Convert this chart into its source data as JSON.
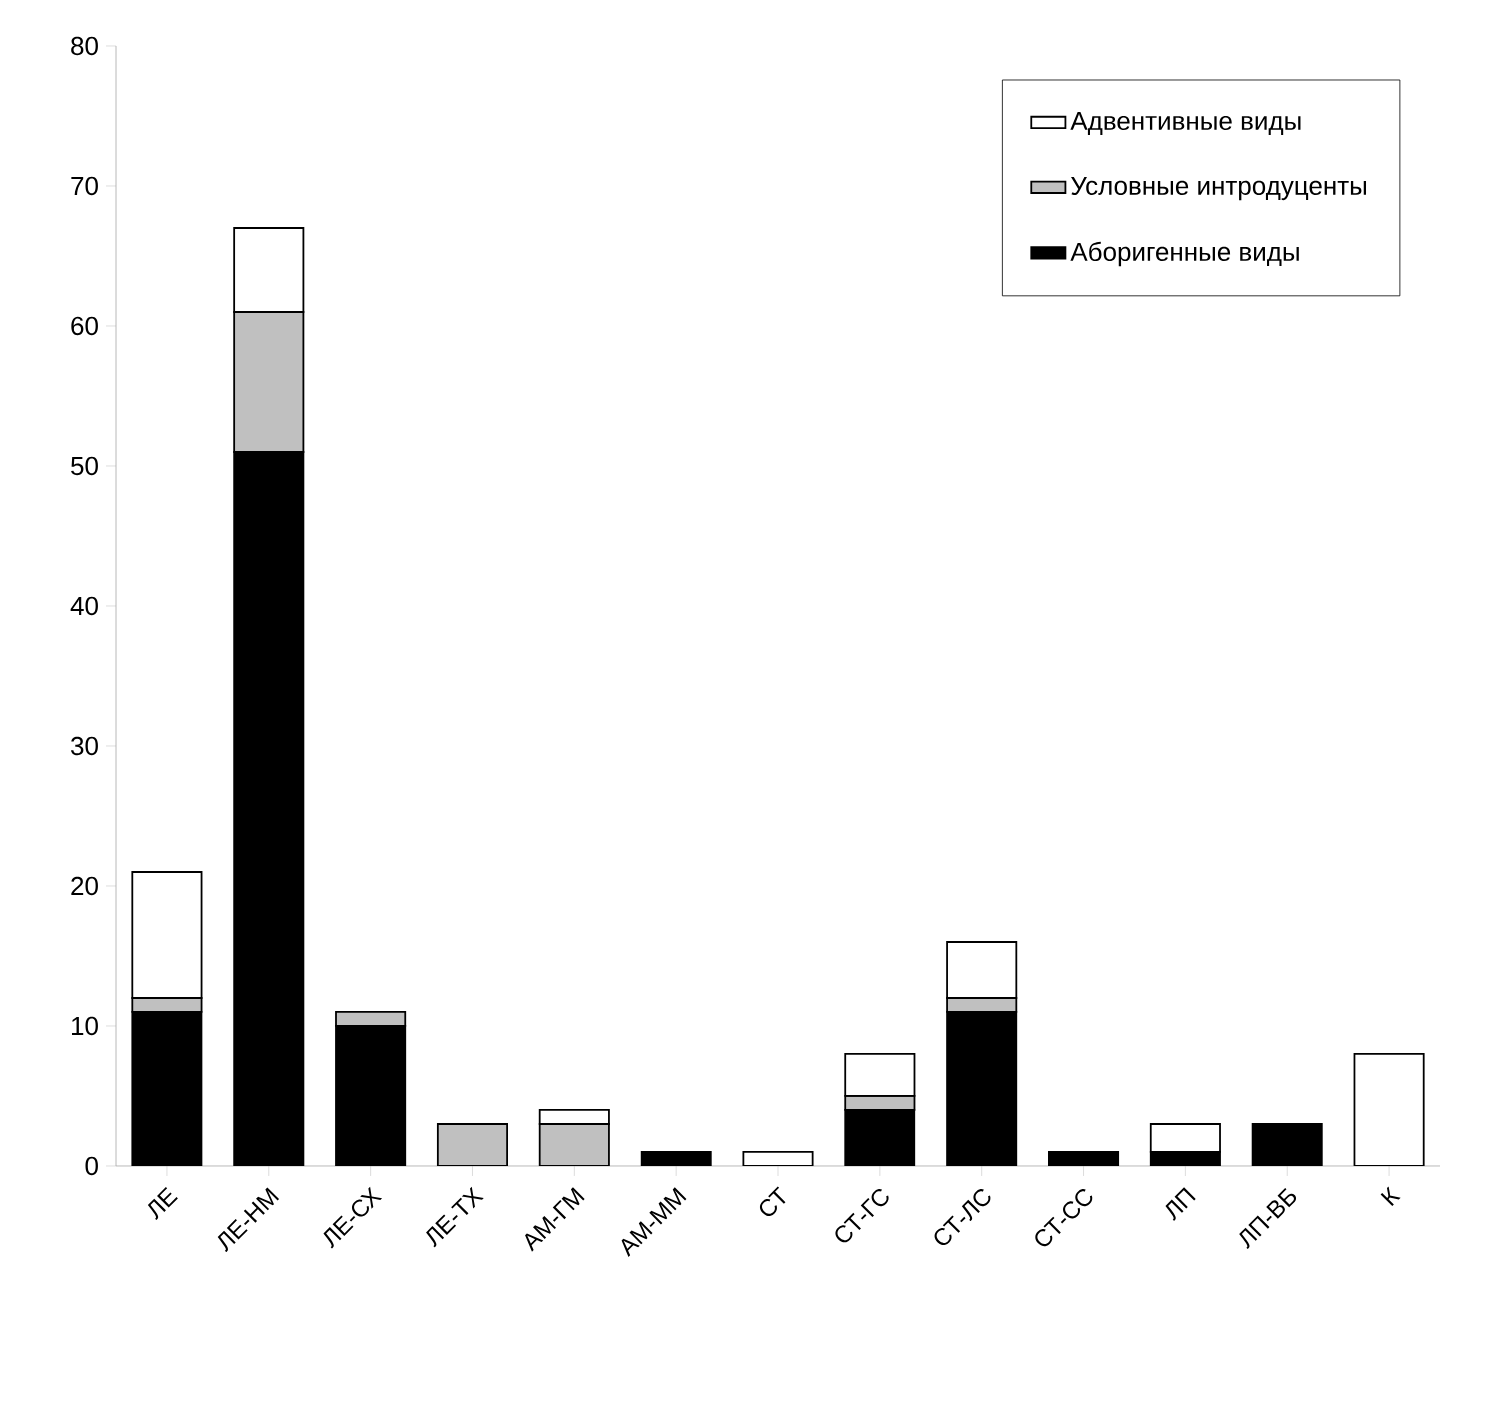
{
  "chart_data": {
    "type": "bar",
    "stacked": true,
    "categories": [
      "ЛЕ",
      "ЛЕ-НМ",
      "ЛЕ-СХ",
      "ЛЕ-ТХ",
      "АМ-ГМ",
      "АМ-ММ",
      "СТ",
      "СТ-ГС",
      "СТ-ЛС",
      "СТ-СС",
      "ЛП",
      "ЛП-ВБ",
      "К"
    ],
    "series": [
      {
        "name": "Аборигенные виды",
        "color": "#000000",
        "values": [
          11,
          51,
          10,
          0,
          0,
          1,
          0,
          4,
          11,
          1,
          1,
          3,
          0
        ]
      },
      {
        "name": "Условные интродуценты",
        "color": "#c0c0c0",
        "values": [
          1,
          10,
          1,
          3,
          3,
          0,
          0,
          1,
          1,
          0,
          0,
          0,
          0
        ]
      },
      {
        "name": "Адвентивные виды",
        "color": "#ffffff",
        "values": [
          9,
          6,
          0,
          0,
          1,
          0,
          1,
          3,
          4,
          0,
          2,
          0,
          8
        ]
      }
    ],
    "ylim": [
      0,
      80
    ],
    "yticks": [
      0,
      10,
      20,
      30,
      40,
      50,
      60,
      70,
      80
    ],
    "legend": "top right"
  }
}
